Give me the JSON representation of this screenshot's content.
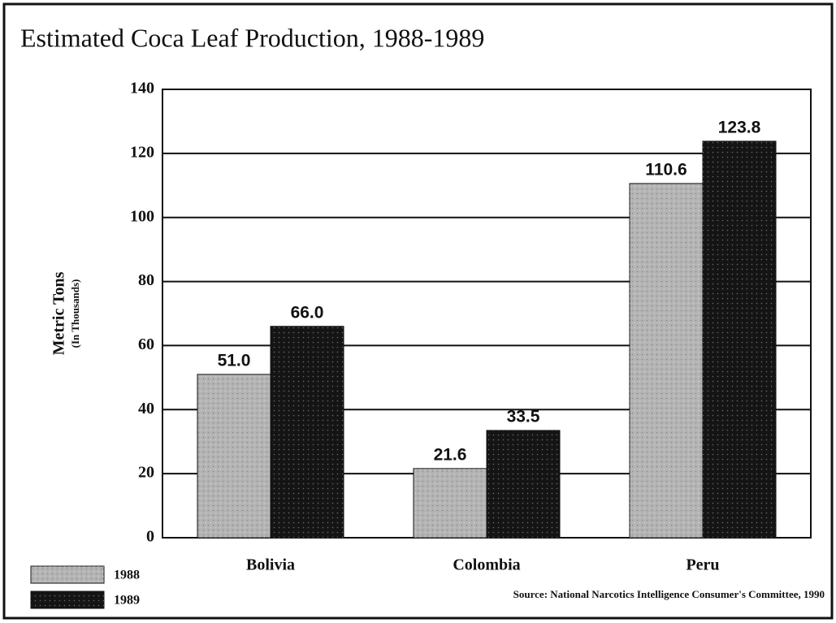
{
  "chart_data": {
    "type": "bar",
    "title": "Estimated Coca Leaf Production, 1988-1989",
    "ylabel": "Metric Tons",
    "ylabel_sub": "(In Thousands)",
    "source": "Source:  National Narcotics Intelligence Consumer's Committee, 1990",
    "categories": [
      "Bolivia",
      "Colombia",
      "Peru"
    ],
    "series": [
      {
        "name": "1988",
        "color": "#b4b4b4",
        "values": [
          51.0,
          21.6,
          110.6
        ],
        "value_labels": [
          "51.0",
          "21.6",
          "110.6"
        ]
      },
      {
        "name": "1989",
        "color": "#151515",
        "values": [
          66.0,
          33.5,
          123.8
        ],
        "value_labels": [
          "66.0",
          "33.5",
          "123.8"
        ]
      }
    ],
    "ylim": [
      0,
      140
    ],
    "yticks": [
      0,
      20,
      40,
      60,
      80,
      100,
      120,
      140
    ],
    "grid": true,
    "legend": "bottom-left"
  }
}
